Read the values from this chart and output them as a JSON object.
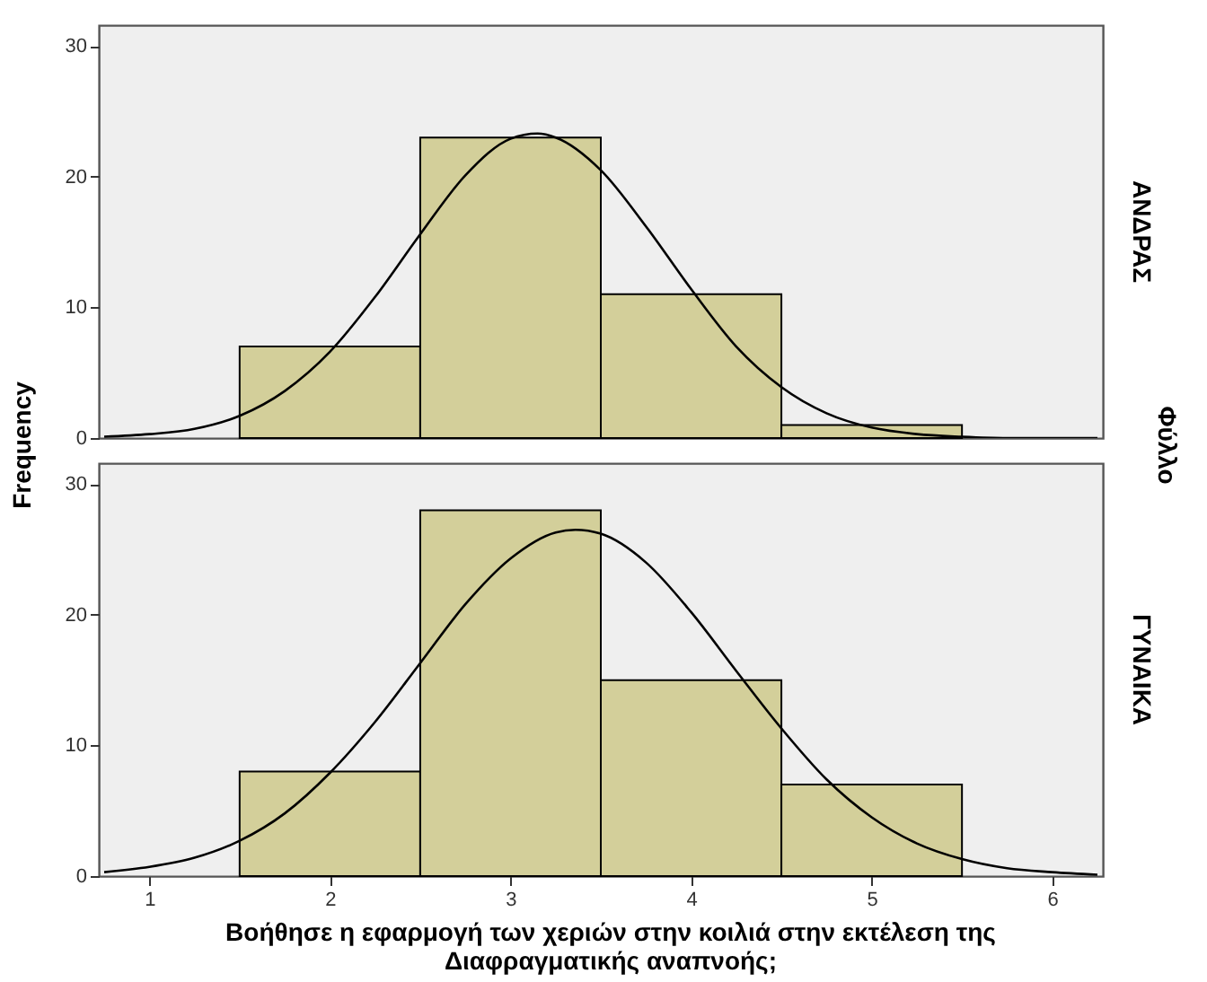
{
  "chart_data": [
    {
      "type": "histogram",
      "ylabel": "Frequency",
      "annotations": [
        "ΑΝΔΡΑΣ",
        "Φύλλο"
      ],
      "xlim": [
        0.72,
        6.28
      ],
      "ylim": [
        0,
        31.6
      ],
      "yticks": [
        0,
        10,
        20,
        30
      ],
      "tick_labels": "y",
      "grid": false,
      "series": [
        {
          "bins": [
            1.5,
            2.5,
            3.5,
            4.5,
            5.5
          ],
          "values": [
            7,
            23,
            11,
            1
          ],
          "color": "#d3cf9a"
        },
        {
          "type": "line",
          "color": "#000000",
          "x": [
            0.75,
            1.0,
            1.25,
            1.5,
            1.75,
            2.0,
            2.25,
            2.5,
            2.75,
            3.0,
            3.15,
            3.25,
            3.5,
            3.75,
            4.0,
            4.25,
            4.5,
            4.75,
            5.0,
            5.25,
            5.5,
            5.75,
            6.0,
            6.25
          ],
          "values": [
            0.1,
            0.3,
            0.7,
            1.7,
            3.6,
            6.6,
            10.8,
            15.6,
            20.1,
            22.9,
            23.3,
            23.0,
            20.5,
            16.2,
            11.4,
            7.0,
            3.9,
            1.9,
            0.8,
            0.3,
            0.1,
            0.0,
            0.0,
            0.0
          ]
        }
      ]
    },
    {
      "type": "histogram",
      "xlabel": "Βοήθησε η εφαρμογή των χεριών στην κοιλιά στην εκτέλεση της Διαφραγματικής αναπνοής;",
      "annotations": [
        "ΓΥΝΑΙΚΑ"
      ],
      "xlim": [
        0.72,
        6.28
      ],
      "xticks": [
        1,
        2,
        3,
        4,
        5,
        6
      ],
      "ylim": [
        0,
        31.6
      ],
      "yticks": [
        0,
        10,
        20,
        30
      ],
      "grid": false,
      "series": [
        {
          "bins": [
            1.5,
            2.5,
            3.5,
            4.5,
            5.5
          ],
          "values": [
            8,
            28,
            15,
            7
          ],
          "color": "#d3cf9a"
        },
        {
          "type": "line",
          "color": "#000000",
          "x": [
            0.75,
            1.0,
            1.25,
            1.5,
            1.75,
            2.0,
            2.25,
            2.5,
            2.75,
            3.0,
            3.25,
            3.36,
            3.5,
            3.75,
            4.0,
            4.25,
            4.5,
            4.75,
            5.0,
            5.25,
            5.5,
            5.75,
            6.0,
            6.25
          ],
          "values": [
            0.3,
            0.7,
            1.4,
            2.7,
            4.8,
            7.9,
            11.8,
            16.3,
            20.8,
            24.3,
            26.3,
            26.5,
            26.2,
            24.0,
            20.2,
            15.7,
            11.3,
            7.4,
            4.5,
            2.5,
            1.3,
            0.6,
            0.3,
            0.1
          ]
        }
      ]
    }
  ]
}
